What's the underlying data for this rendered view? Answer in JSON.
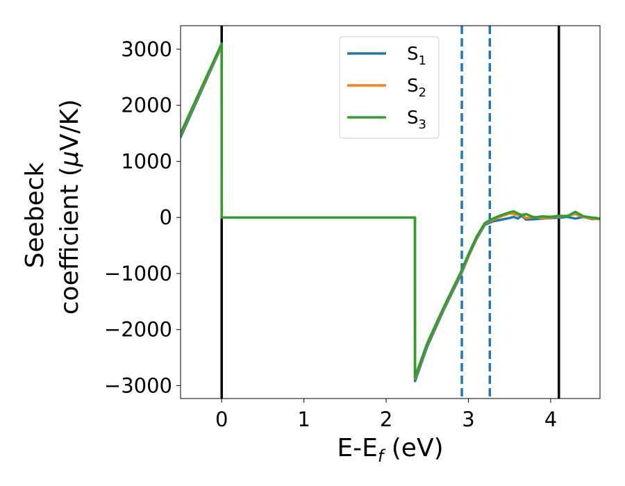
{
  "chart_data": {
    "type": "line",
    "xlabel": "E-E",
    "xlabel_sub": "f",
    "xlabel_unit": " (eV)",
    "ylabel_line1": "Seebeck",
    "ylabel_line2": "coefficient  (",
    "ylabel_mu": "μ",
    "ylabel_unit": "V/K)",
    "xlim": [
      -0.5,
      4.6
    ],
    "ylim": [
      -3230,
      3420
    ],
    "x_ticks": [
      0,
      1,
      2,
      3,
      4
    ],
    "x_tick_labels": [
      "0",
      "1",
      "2",
      "3",
      "4"
    ],
    "y_ticks": [
      -3000,
      -2000,
      -1000,
      0,
      1000,
      2000,
      3000
    ],
    "y_tick_labels": [
      "−3000",
      "−2000",
      "−1000",
      "0",
      "1000",
      "2000",
      "3000"
    ],
    "grid": false,
    "legend_position": "top-center",
    "vlines": [
      {
        "x": 0.0,
        "style": "solid",
        "color": "#000000"
      },
      {
        "x": 4.1,
        "style": "solid",
        "color": "#000000"
      },
      {
        "x": 2.92,
        "style": "dashed",
        "color": "#1f77b4"
      },
      {
        "x": 3.26,
        "style": "dashed",
        "color": "#1f77b4"
      }
    ],
    "series": [
      {
        "name": "S",
        "sub": "1",
        "color": "#1f77b4",
        "x": [
          -0.5,
          0.0,
          0.001,
          2.35,
          2.351,
          2.5,
          2.7,
          2.9,
          3.0,
          3.1,
          3.2,
          3.3,
          3.4,
          3.5,
          3.55,
          3.6,
          3.65,
          3.7,
          3.8,
          3.9,
          4.0,
          4.1,
          4.2,
          4.3,
          4.4,
          4.5,
          4.6
        ],
        "y": [
          1430,
          3060,
          0,
          0,
          -2920,
          -2300,
          -1650,
          -1050,
          -700,
          -380,
          -130,
          -70,
          -40,
          -10,
          10,
          -20,
          30,
          -40,
          -30,
          -20,
          -10,
          -5,
          10,
          -20,
          10,
          -30,
          -20
        ]
      },
      {
        "name": "S",
        "sub": "2",
        "color": "#ff7f0e",
        "x": [
          -0.5,
          0.0,
          0.001,
          2.35,
          2.351,
          2.5,
          2.7,
          2.9,
          3.0,
          3.1,
          3.2,
          3.3,
          3.4,
          3.5,
          3.55,
          3.6,
          3.65,
          3.7,
          3.8,
          3.9,
          4.0,
          4.1,
          4.2,
          4.3,
          4.4,
          4.5,
          4.6
        ],
        "y": [
          1480,
          3080,
          0,
          0,
          -2870,
          -2260,
          -1620,
          -1020,
          -680,
          -360,
          -110,
          -40,
          20,
          70,
          60,
          40,
          50,
          -10,
          10,
          -10,
          0,
          20,
          30,
          60,
          10,
          -20,
          -30
        ]
      },
      {
        "name": "S",
        "sub": "3",
        "color": "#2ca02c",
        "x": [
          -0.5,
          0.0,
          0.001,
          2.35,
          2.351,
          2.5,
          2.7,
          2.9,
          3.0,
          3.1,
          3.2,
          3.3,
          3.4,
          3.5,
          3.55,
          3.6,
          3.65,
          3.7,
          3.8,
          3.9,
          4.0,
          4.1,
          4.2,
          4.3,
          4.4,
          4.5,
          4.6
        ],
        "y": [
          1500,
          3100,
          0,
          0,
          -2850,
          -2240,
          -1600,
          -1000,
          -660,
          -340,
          -100,
          -20,
          40,
          90,
          110,
          70,
          40,
          60,
          0,
          20,
          10,
          30,
          20,
          100,
          20,
          0,
          -20
        ]
      }
    ]
  }
}
